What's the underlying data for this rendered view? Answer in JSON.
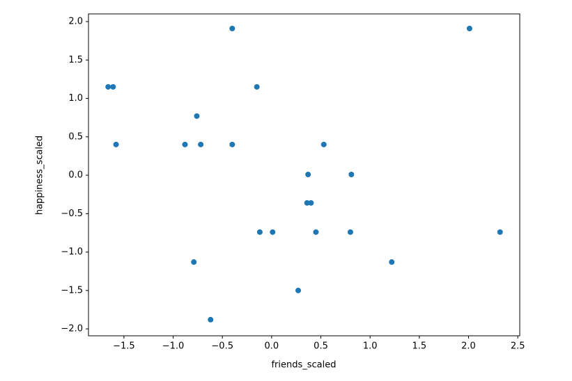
{
  "chart_data": {
    "type": "scatter",
    "xlabel": "friends_scaled",
    "ylabel": "happiness_scaled",
    "color": "#1f77b4",
    "x": [
      -1.66,
      -1.61,
      -1.58,
      -0.4,
      -0.15,
      -0.76,
      -0.88,
      -0.72,
      -0.4,
      0.53,
      0.37,
      0.81,
      0.36,
      0.4,
      -0.12,
      0.01,
      0.45,
      0.8,
      2.32,
      -0.79,
      1.22,
      0.27,
      -0.62,
      2.01
    ],
    "values": [
      1.15,
      1.15,
      0.4,
      1.91,
      1.15,
      0.77,
      0.4,
      0.4,
      0.4,
      0.4,
      0.01,
      0.01,
      -0.36,
      -0.36,
      -0.74,
      -0.74,
      -0.74,
      -0.74,
      -0.74,
      -1.13,
      -1.13,
      -1.5,
      -1.88,
      1.91
    ],
    "xlim": [
      -1.86,
      2.52
    ],
    "ylim": [
      -2.09,
      2.1
    ],
    "xticks": [
      {
        "value": -1.5,
        "label": "−1.5"
      },
      {
        "value": -1.0,
        "label": "−1.0"
      },
      {
        "value": -0.5,
        "label": "−0.5"
      },
      {
        "value": 0,
        "label": "0.0"
      },
      0.5,
      {
        "value": 1.0,
        "label": "1.0"
      },
      1.5,
      {
        "value": 2.0,
        "label": "2.0"
      },
      2.5
    ],
    "yticks": [
      {
        "value": -2.0,
        "label": "−2.0"
      },
      {
        "value": -1.5,
        "label": "−1.5"
      },
      {
        "value": -1.0,
        "label": "−1.0"
      },
      {
        "value": -0.5,
        "label": "−0.5"
      },
      {
        "value": 0,
        "label": "0.0"
      },
      0.5,
      {
        "value": 1.0,
        "label": "1.0"
      },
      1.5,
      {
        "value": 2.0,
        "label": "2.0"
      }
    ],
    "grid": false
  }
}
